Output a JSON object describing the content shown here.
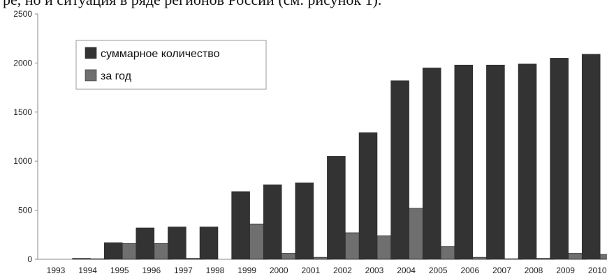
{
  "top_text": "ре, но и ситуация в ряде регионов России (см. рисунок 1).",
  "colors": {
    "cumulative": "#333333",
    "annual": "#6f6f6f",
    "axis": "#888888",
    "grid": "#cccccc"
  },
  "chart_data": {
    "type": "bar",
    "categories": [
      "1993",
      "1994",
      "1995",
      "1996",
      "1997",
      "1998",
      "1999",
      "2000",
      "2001",
      "2002",
      "2003",
      "2004",
      "2005",
      "2006",
      "2007",
      "2008",
      "2009",
      "2010"
    ],
    "series": [
      {
        "name": "суммарное количество",
        "values": [
          0,
          10,
          170,
          320,
          330,
          330,
          690,
          760,
          780,
          1050,
          1290,
          1820,
          1950,
          1980,
          1980,
          1990,
          2050,
          2090
        ]
      },
      {
        "name": "за год",
        "values": [
          0,
          5,
          160,
          160,
          10,
          0,
          360,
          60,
          20,
          270,
          240,
          520,
          130,
          20,
          5,
          10,
          60,
          50
        ]
      }
    ],
    "yticks": [
      0,
      500,
      1000,
      1500,
      2000,
      2500
    ],
    "ylim": [
      0,
      2500
    ],
    "grid": false,
    "legend_position": "top-left",
    "title": "",
    "xlabel": "",
    "ylabel": ""
  }
}
